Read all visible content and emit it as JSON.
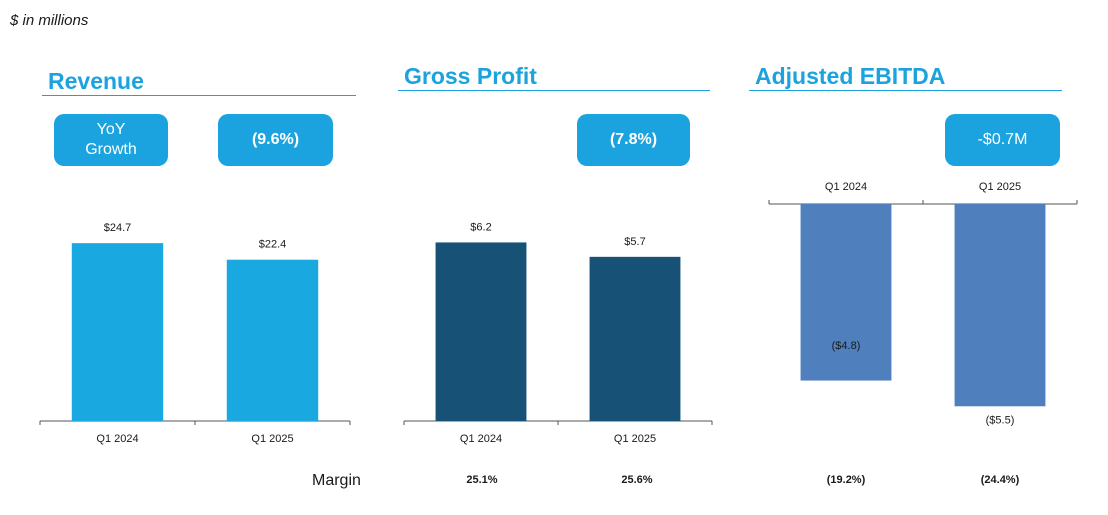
{
  "units_note": "$ in millions",
  "panels": {
    "revenue": {
      "title": "Revenue"
    },
    "gross_profit": {
      "title": "Gross Profit"
    },
    "ebitda": {
      "title": "Adjusted EBITDA"
    }
  },
  "badges": {
    "yoy_label": "YoY Growth",
    "revenue_growth": "(9.6%)",
    "gross_profit_growth": "(7.8%)",
    "ebitda_change": "-$0.7M"
  },
  "margin": {
    "label": "Margin",
    "gross_profit": [
      "25.1%",
      "25.6%"
    ],
    "ebitda": [
      "(19.2%)",
      "(24.4%)"
    ]
  },
  "colors": {
    "accent": "#1aa3df",
    "revenue_bar": "#1aa8e0",
    "gross_profit_bar": "#175276",
    "ebitda_bar": "#4f80bd"
  },
  "chart_data": [
    {
      "type": "bar",
      "title": "Revenue",
      "categories": [
        "Q1 2024",
        "Q1 2025"
      ],
      "values": [
        24.7,
        22.4
      ],
      "value_labels": [
        "$24.7",
        "$22.4"
      ],
      "ylim": [
        0,
        30
      ]
    },
    {
      "type": "bar",
      "title": "Gross Profit",
      "categories": [
        "Q1 2024",
        "Q1 2025"
      ],
      "values": [
        6.2,
        5.7
      ],
      "value_labels": [
        "$6.2",
        "$5.7"
      ],
      "ylim": [
        0,
        7.5
      ]
    },
    {
      "type": "bar",
      "title": "Adjusted EBITDA",
      "categories": [
        "Q1 2024",
        "Q1 2025"
      ],
      "values": [
        -4.8,
        -5.5
      ],
      "value_labels": [
        "($4.8)",
        "($5.5)"
      ],
      "ylim": [
        -5.9,
        0
      ]
    }
  ]
}
